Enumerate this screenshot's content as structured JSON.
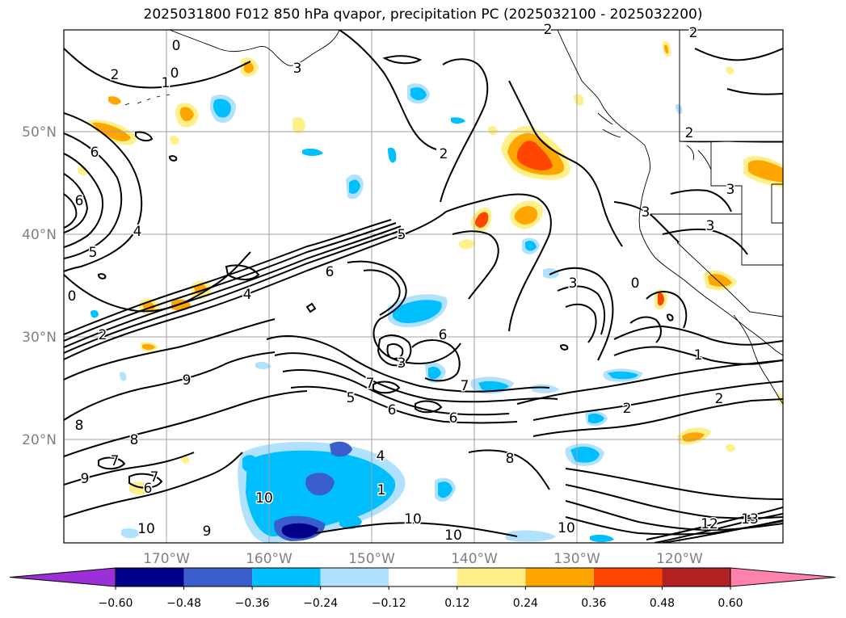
{
  "title": "2025031800 F012 850 hPa qvapor, precipitation PC (2025032100 - 2025032200)",
  "map": {
    "lat_labels": [
      "50°N",
      "40°N",
      "30°N",
      "20°N"
    ],
    "lon_labels": [
      "170°W",
      "160°W",
      "150°W",
      "140°W",
      "130°W",
      "120°W"
    ],
    "label_color": "#808080",
    "grid_color": "#a0a0a0"
  },
  "colorbar": {
    "tick_labels": [
      "−0.60",
      "−0.48",
      "−0.36",
      "−0.24",
      "−0.12",
      "0.12",
      "0.24",
      "0.36",
      "0.48",
      "0.60"
    ],
    "colors": [
      "#9b30d8",
      "#00008b",
      "#3a5fcd",
      "#00bfff",
      "#b0e2ff",
      "#ffffff",
      "#fff08a",
      "#ffa500",
      "#ff4500",
      "#b22222",
      "#ff82ab"
    ]
  },
  "contour_labels": [
    {
      "text": "2"
    },
    {
      "text": "1"
    },
    {
      "text": "0"
    },
    {
      "text": "0"
    },
    {
      "text": "3"
    },
    {
      "text": "2"
    },
    {
      "text": "6"
    },
    {
      "text": "6"
    },
    {
      "text": "4"
    },
    {
      "text": "5"
    },
    {
      "text": "0"
    },
    {
      "text": "2"
    },
    {
      "text": "5"
    },
    {
      "text": "6"
    },
    {
      "text": "4"
    },
    {
      "text": "9"
    },
    {
      "text": "8"
    },
    {
      "text": "8"
    },
    {
      "text": "7"
    },
    {
      "text": "9"
    },
    {
      "text": "6"
    },
    {
      "text": "7"
    },
    {
      "text": "10"
    },
    {
      "text": "10"
    },
    {
      "text": "9"
    },
    {
      "text": "7"
    },
    {
      "text": "6"
    },
    {
      "text": "3"
    },
    {
      "text": "5"
    },
    {
      "text": "6"
    },
    {
      "text": "7"
    },
    {
      "text": "6"
    },
    {
      "text": "10"
    },
    {
      "text": "10"
    },
    {
      "text": "10"
    },
    {
      "text": "3"
    },
    {
      "text": "3"
    },
    {
      "text": "3"
    },
    {
      "text": "0"
    },
    {
      "text": "1"
    },
    {
      "text": "2"
    },
    {
      "text": "2"
    },
    {
      "text": "2"
    },
    {
      "text": "8"
    },
    {
      "text": "12"
    },
    {
      "text": "13"
    },
    {
      "text": "2"
    },
    {
      "text": "3"
    },
    {
      "text": "2"
    },
    {
      "text": "1"
    },
    {
      "text": "4"
    }
  ]
}
